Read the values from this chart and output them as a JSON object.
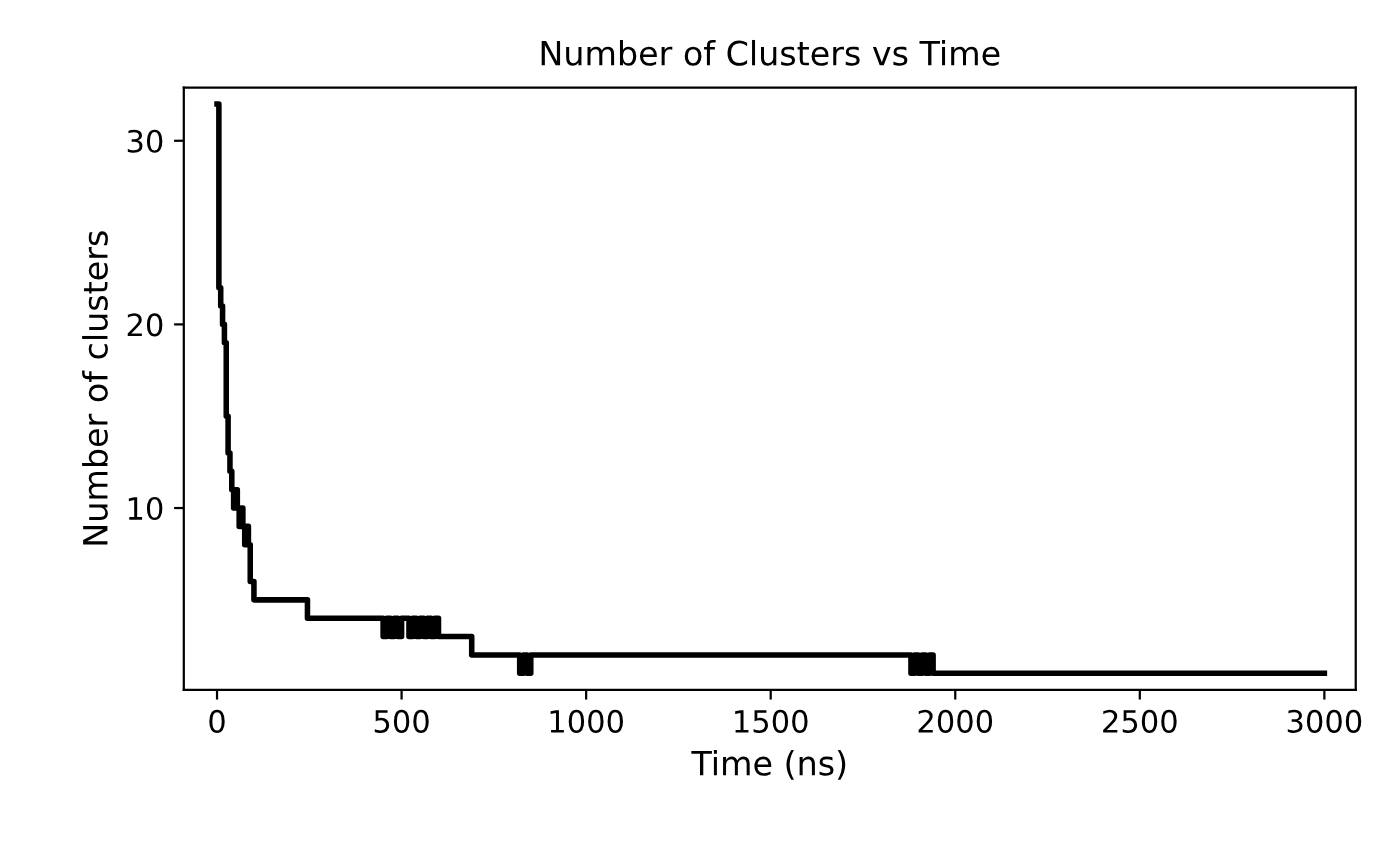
{
  "chart_data": {
    "type": "step",
    "title": "Number of Clusters vs Time",
    "xlabel": "Time (ns)",
    "ylabel": "Number of clusters",
    "xlim": [
      -90,
      3085
    ],
    "ylim": [
      0.1,
      32.9
    ],
    "xticks": [
      0,
      500,
      1000,
      1500,
      2000,
      2500,
      3000
    ],
    "yticks": [
      10,
      20,
      30
    ],
    "grid": false,
    "legend": false,
    "marker": "none",
    "line_style": "solid",
    "series": [
      {
        "color": "#000000",
        "x": [
          0,
          5,
          10,
          15,
          20,
          25,
          30,
          35,
          40,
          45,
          50,
          55,
          60,
          65,
          70,
          75,
          80,
          85,
          90,
          100,
          245,
          255,
          450,
          460,
          470,
          480,
          490,
          500,
          520,
          530,
          540,
          550,
          560,
          570,
          580,
          590,
          600,
          690,
          700,
          820,
          830,
          840,
          850,
          860,
          1880,
          1890,
          1900,
          1910,
          1920,
          1930,
          1940,
          3000
        ],
        "values": [
          32,
          22,
          21,
          20,
          19,
          15,
          13,
          12,
          11,
          10,
          11,
          10,
          9,
          10,
          9,
          8,
          9,
          8,
          6,
          5,
          4,
          4,
          3,
          4,
          3,
          4,
          3,
          4,
          3,
          4,
          3,
          4,
          3,
          4,
          3,
          4,
          3,
          2,
          2,
          1,
          2,
          1,
          2,
          2,
          1,
          2,
          1,
          2,
          1,
          2,
          1,
          1
        ]
      }
    ]
  }
}
